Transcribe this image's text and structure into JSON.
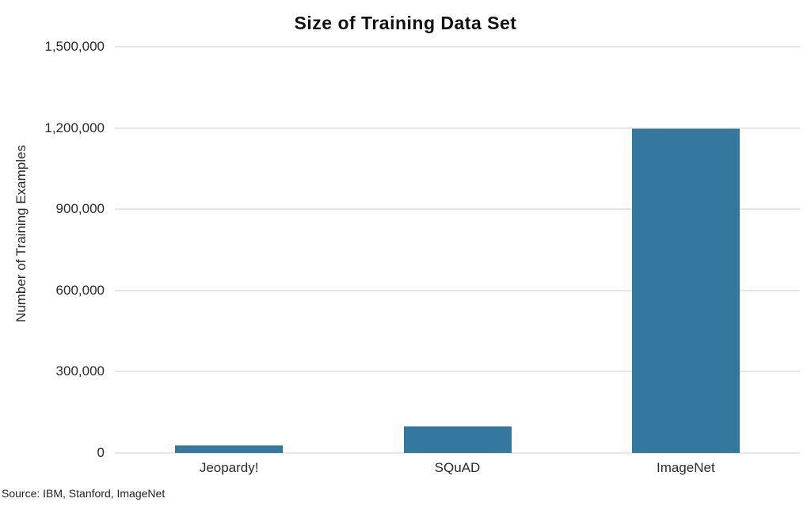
{
  "title": "Size of Training Data Set",
  "source_note": "Source: IBM, Stanford, ImageNet",
  "colors": {
    "bar": "#35789f",
    "gridline": "#e7e7e7",
    "title_text": "#111111",
    "axis_text": "#2b2b2b",
    "background": "#ffffff"
  },
  "chart_data": {
    "type": "bar",
    "title": "Size of Training Data Set",
    "xlabel": "",
    "ylabel": "Number of Training Examples",
    "categories": [
      "Jeopardy!",
      "SQuAD",
      "ImageNet"
    ],
    "values": [
      30000,
      100000,
      1200000
    ],
    "ylim": [
      0,
      1500000
    ],
    "ytick_values": [
      0,
      300000,
      600000,
      900000,
      1200000,
      1500000
    ],
    "ytick_labels": [
      "0",
      "300,000",
      "600,000",
      "900,000",
      "1,200,000",
      "1,500,000"
    ],
    "grid": true,
    "legend": false,
    "bar_color": "#35789f",
    "source": "Source: IBM, Stanford, ImageNet"
  }
}
